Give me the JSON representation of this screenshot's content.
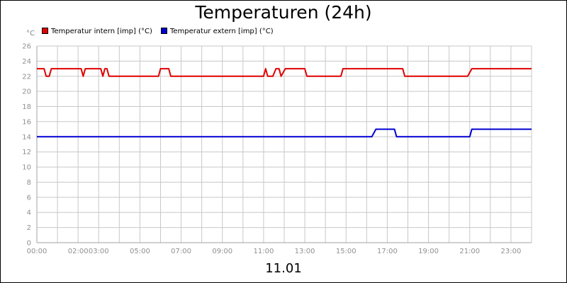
{
  "chart_data": {
    "type": "line",
    "title": "Temperaturen (24h)",
    "date_label": "11.01",
    "ylabel": "°C",
    "ylim": [
      0,
      26
    ],
    "yticks": [
      0,
      2,
      4,
      6,
      8,
      10,
      12,
      14,
      16,
      18,
      20,
      22,
      24,
      26
    ],
    "xlim": [
      0,
      24
    ],
    "xtick_labels": [
      {
        "hour": 0,
        "label": "00:00"
      },
      {
        "hour": 2,
        "label": "02:00"
      },
      {
        "hour": 3,
        "label": "03:00"
      },
      {
        "hour": 5,
        "label": "05:00"
      },
      {
        "hour": 7,
        "label": "07:00"
      },
      {
        "hour": 9,
        "label": "09:00"
      },
      {
        "hour": 11,
        "label": "11:00"
      },
      {
        "hour": 13,
        "label": "13:00"
      },
      {
        "hour": 15,
        "label": "15:00"
      },
      {
        "hour": 17,
        "label": "17:00"
      },
      {
        "hour": 19,
        "label": "19:00"
      },
      {
        "hour": 21,
        "label": "21:00"
      },
      {
        "hour": 23,
        "label": "23:00"
      }
    ],
    "grid": true,
    "legend_position": "top-left",
    "series": [
      {
        "name": "Temperatur intern [imp] (°C)",
        "color": "#e00000",
        "points": [
          [
            0,
            23
          ],
          [
            0.35,
            23
          ],
          [
            0.45,
            22
          ],
          [
            0.6,
            22
          ],
          [
            0.7,
            23
          ],
          [
            2.15,
            23
          ],
          [
            2.25,
            22
          ],
          [
            2.35,
            23
          ],
          [
            3.1,
            23
          ],
          [
            3.2,
            22
          ],
          [
            3.3,
            23
          ],
          [
            3.4,
            23
          ],
          [
            3.5,
            22
          ],
          [
            5.9,
            22
          ],
          [
            6.0,
            23
          ],
          [
            6.4,
            23
          ],
          [
            6.5,
            22
          ],
          [
            11.0,
            22
          ],
          [
            11.1,
            23
          ],
          [
            11.2,
            22
          ],
          [
            11.45,
            22
          ],
          [
            11.6,
            23
          ],
          [
            11.75,
            23
          ],
          [
            11.85,
            22
          ],
          [
            12.05,
            23
          ],
          [
            13.0,
            23
          ],
          [
            13.1,
            22
          ],
          [
            14.75,
            22
          ],
          [
            14.85,
            23
          ],
          [
            17.75,
            23
          ],
          [
            17.85,
            22
          ],
          [
            20.9,
            22
          ],
          [
            21.1,
            23
          ],
          [
            24,
            23
          ]
        ]
      },
      {
        "name": "Temperatur extern [imp] (°C)",
        "color": "#0000d0",
        "points": [
          [
            0,
            14
          ],
          [
            16.25,
            14
          ],
          [
            16.45,
            15
          ],
          [
            17.35,
            15
          ],
          [
            17.45,
            14
          ],
          [
            21.0,
            14
          ],
          [
            21.1,
            15
          ],
          [
            24,
            15
          ]
        ]
      }
    ]
  }
}
